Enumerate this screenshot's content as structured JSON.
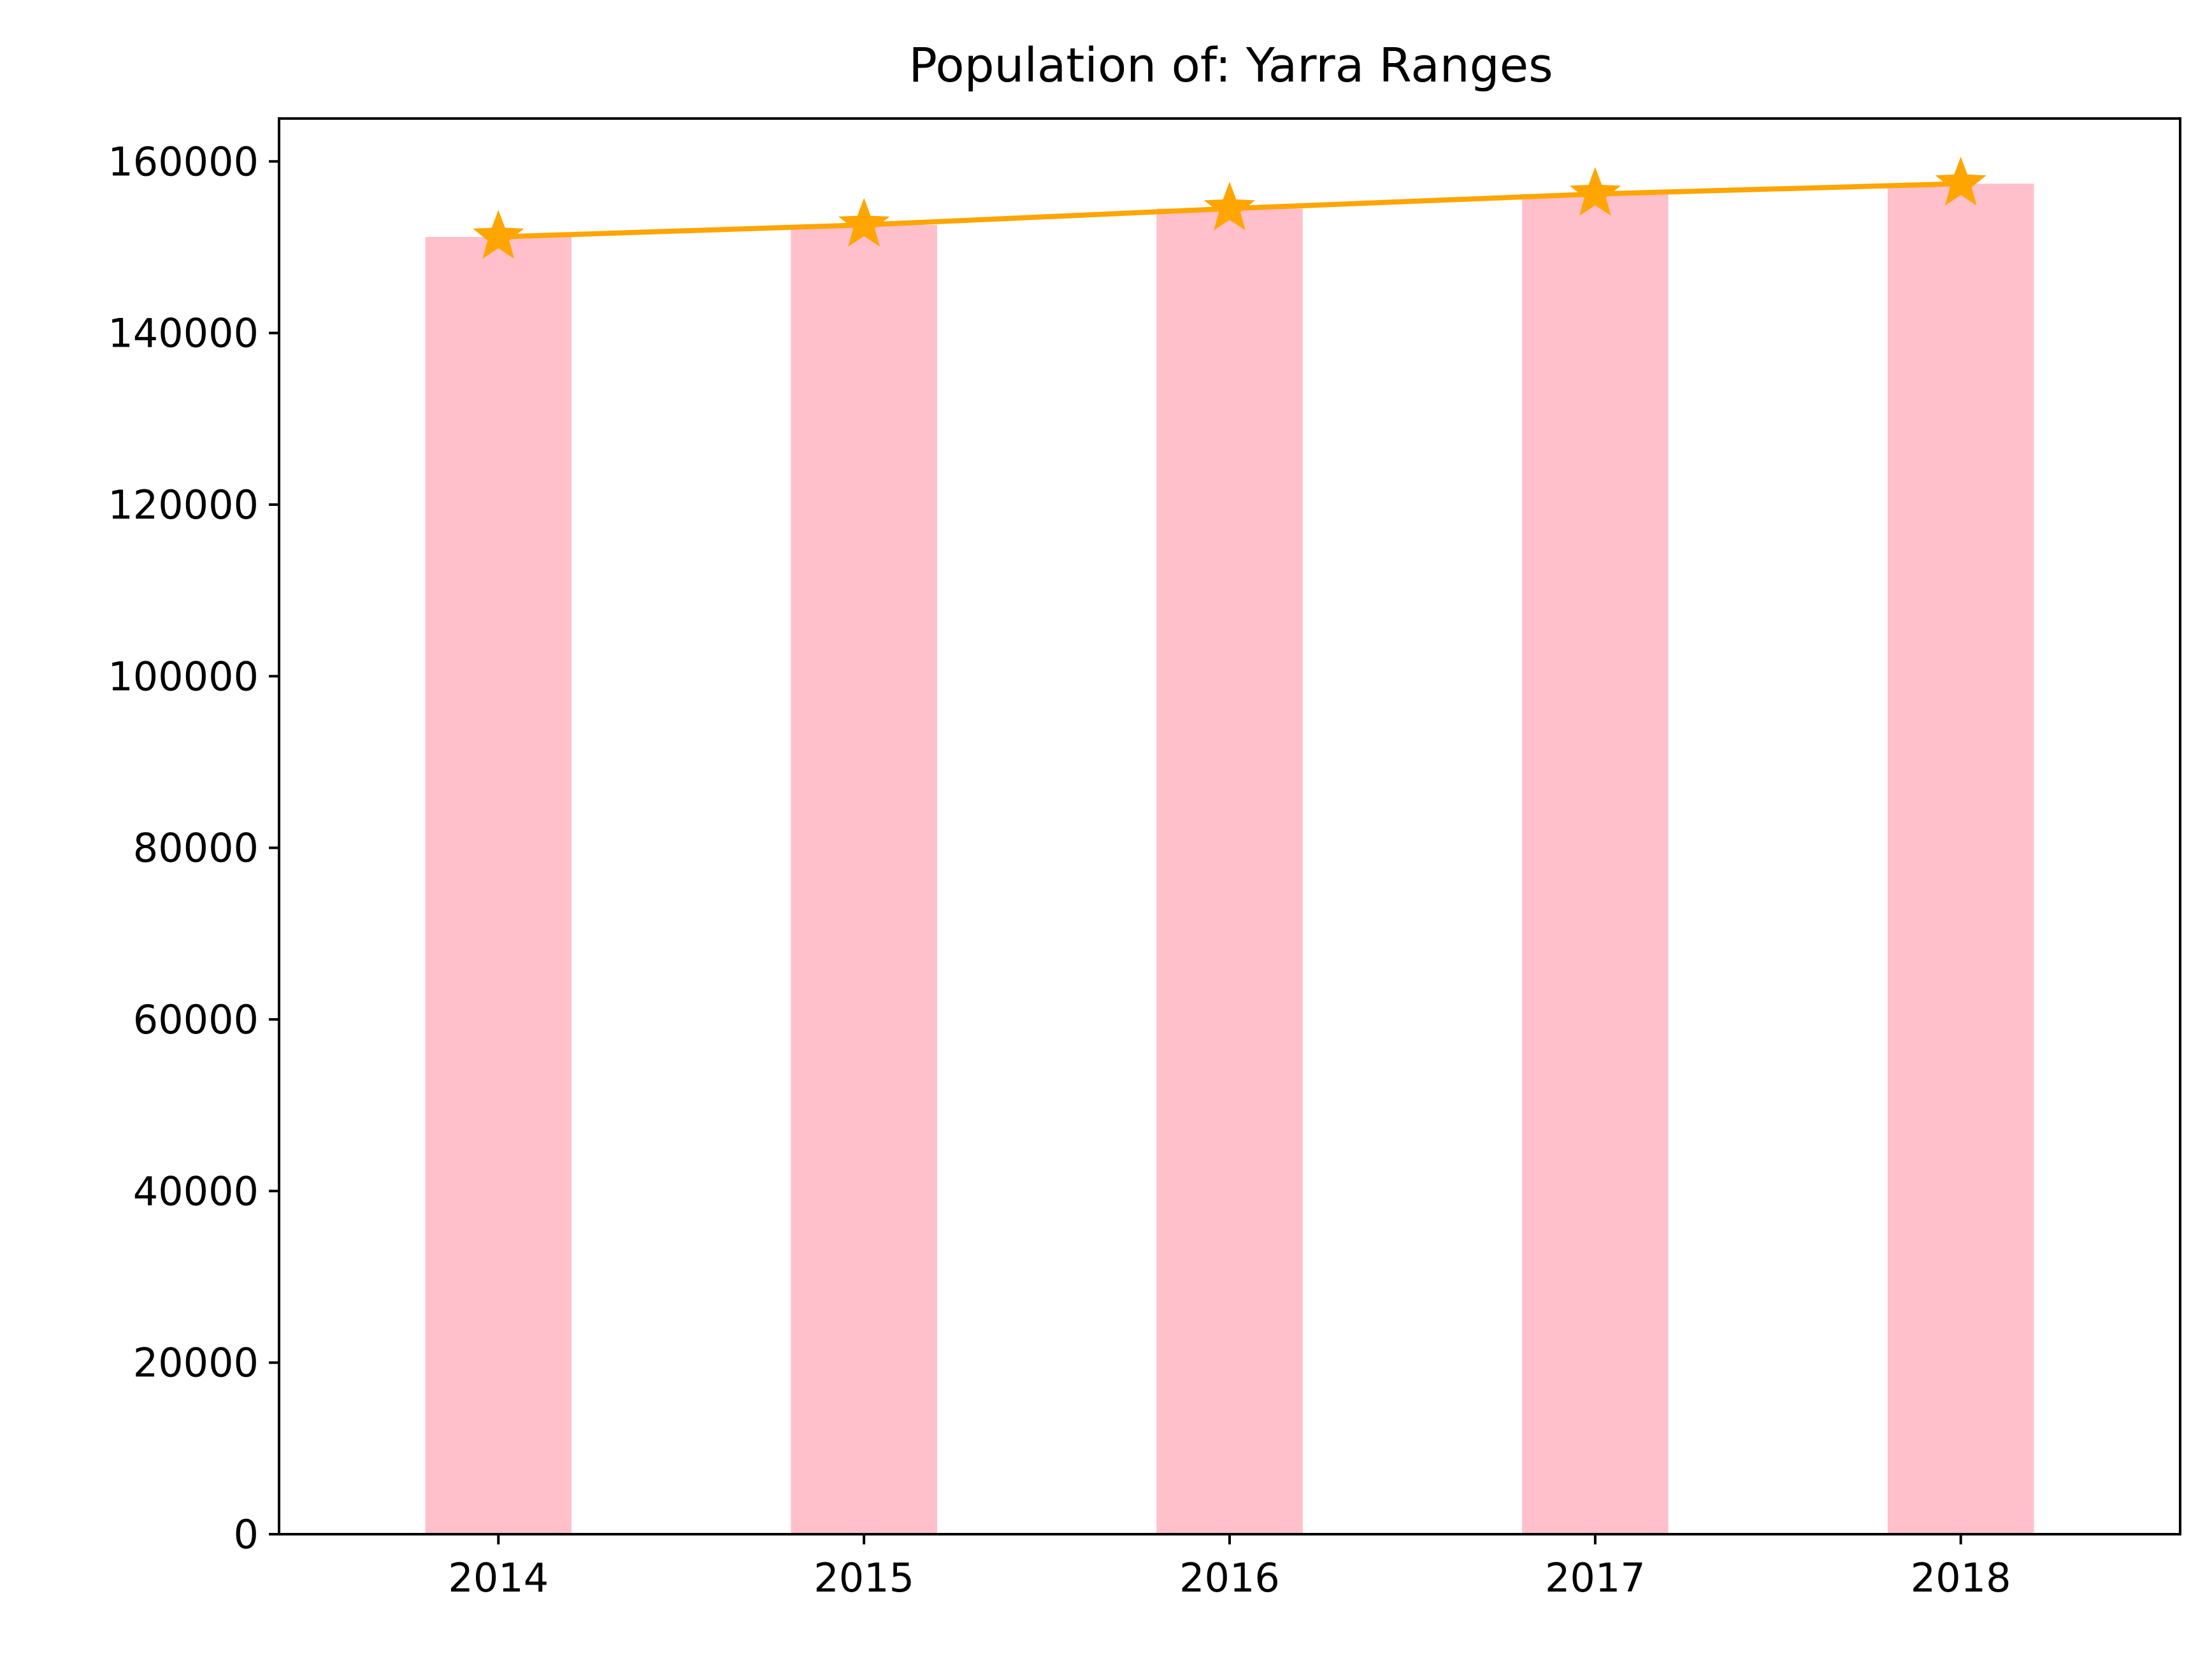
{
  "chart_data": {
    "type": "bar",
    "title": "Population of: Yarra Ranges",
    "xlabel": "",
    "ylabel": "",
    "categories": [
      "2014",
      "2015",
      "2016",
      "2017",
      "2018"
    ],
    "series": [
      {
        "type": "bar",
        "values": [
          151200,
          152600,
          154500,
          156200,
          157400
        ]
      },
      {
        "type": "line",
        "marker": "star",
        "values": [
          151200,
          152600,
          154500,
          156200,
          157400
        ]
      }
    ],
    "ylim": [
      0,
      165000
    ],
    "yticks": [
      0,
      20000,
      40000,
      60000,
      80000,
      100000,
      120000,
      140000,
      160000
    ],
    "ytick_labels": [
      "0",
      "20000",
      "40000",
      "60000",
      "80000",
      "100000",
      "120000",
      "140000",
      "160000"
    ],
    "grid": false,
    "legend": "none",
    "colors": {
      "bar": "#ffc0cb",
      "line": "#ffa500",
      "axis": "#000000"
    }
  }
}
